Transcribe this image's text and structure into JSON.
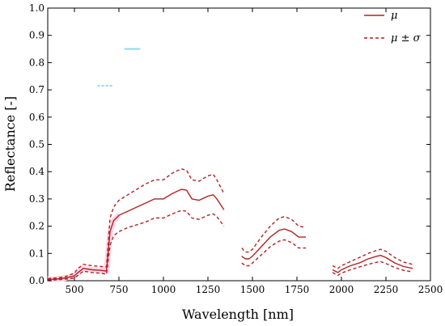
{
  "chart_data": {
    "type": "line",
    "xlabel": "Wavelength [nm]",
    "ylabel": "Reflectance [-]",
    "xlim": [
      350,
      2500
    ],
    "ylim": [
      0.0,
      1.0
    ],
    "xticks": [
      "500",
      "750",
      "1000",
      "1250",
      "1500",
      "1750",
      "2000",
      "2250",
      "2500"
    ],
    "xtick_values": [
      500,
      750,
      1000,
      1250,
      1500,
      1750,
      2000,
      2250,
      2500
    ],
    "yticks": [
      "0.0",
      "0.1",
      "0.2",
      "0.3",
      "0.4",
      "0.5",
      "0.6",
      "0.7",
      "0.8",
      "0.9",
      "1.0"
    ],
    "ytick_values": [
      0.0,
      0.1,
      0.2,
      0.3,
      0.4,
      0.5,
      0.6,
      0.7,
      0.8,
      0.9,
      1.0
    ],
    "legend_position": "top-right",
    "colors": {
      "series": "#b22222",
      "glow": "#ffd6e7",
      "artifact": "#8fd8f0"
    },
    "series": [
      {
        "name": "μ",
        "style": "solid",
        "segments": [
          {
            "x": [
              350,
              400,
              450,
              500,
              520,
              550,
              600,
              650,
              680,
              700,
              720,
              750,
              800,
              850,
              900,
              950,
              1000,
              1050,
              1100,
              1130,
              1160,
              1200,
              1250,
              1280,
              1300,
              1340
            ],
            "y": [
              0.005,
              0.006,
              0.01,
              0.018,
              0.03,
              0.045,
              0.04,
              0.038,
              0.035,
              0.18,
              0.22,
              0.24,
              0.255,
              0.27,
              0.285,
              0.3,
              0.3,
              0.32,
              0.335,
              0.332,
              0.3,
              0.295,
              0.31,
              0.315,
              0.3,
              0.26
            ]
          },
          {
            "x": [
              1440,
              1460,
              1480,
              1500,
              1550,
              1600,
              1650,
              1680,
              1720,
              1760,
              1800
            ],
            "y": [
              0.09,
              0.08,
              0.08,
              0.09,
              0.125,
              0.16,
              0.185,
              0.19,
              0.18,
              0.16,
              0.16
            ]
          },
          {
            "x": [
              1950,
              1980,
              2000,
              2050,
              2100,
              2150,
              2200,
              2220,
              2250,
              2300,
              2350,
              2400
            ],
            "y": [
              0.04,
              0.03,
              0.04,
              0.055,
              0.065,
              0.08,
              0.09,
              0.093,
              0.085,
              0.065,
              0.052,
              0.045
            ]
          }
        ]
      },
      {
        "name": "μ ± σ",
        "style": "dashed",
        "segments": [
          {
            "x": [
              350,
              400,
              450,
              500,
              520,
              550,
              600,
              650,
              680,
              700,
              720,
              750,
              800,
              850,
              900,
              950,
              1000,
              1050,
              1100,
              1130,
              1160,
              1200,
              1250,
              1280,
              1300,
              1340
            ],
            "y": [
              0.008,
              0.01,
              0.015,
              0.028,
              0.045,
              0.06,
              0.055,
              0.052,
              0.05,
              0.23,
              0.27,
              0.295,
              0.315,
              0.335,
              0.355,
              0.37,
              0.37,
              0.395,
              0.41,
              0.405,
              0.37,
              0.365,
              0.385,
              0.39,
              0.37,
              0.32
            ]
          },
          {
            "x": [
              350,
              400,
              450,
              500,
              520,
              550,
              600,
              650,
              680,
              700,
              720,
              750,
              800,
              850,
              900,
              950,
              1000,
              1050,
              1100,
              1130,
              1160,
              1200,
              1250,
              1280,
              1300,
              1340
            ],
            "y": [
              0.002,
              0.003,
              0.006,
              0.01,
              0.02,
              0.035,
              0.03,
              0.027,
              0.024,
              0.13,
              0.165,
              0.18,
              0.195,
              0.205,
              0.215,
              0.23,
              0.23,
              0.245,
              0.258,
              0.255,
              0.23,
              0.225,
              0.24,
              0.245,
              0.235,
              0.2
            ]
          },
          {
            "x": [
              1440,
              1460,
              1480,
              1500,
              1550,
              1600,
              1650,
              1680,
              1720,
              1760,
              1800
            ],
            "y": [
              0.12,
              0.105,
              0.105,
              0.115,
              0.16,
              0.2,
              0.23,
              0.235,
              0.225,
              0.2,
              0.195
            ]
          },
          {
            "x": [
              1440,
              1460,
              1480,
              1500,
              1550,
              1600,
              1650,
              1680,
              1720,
              1760,
              1800
            ],
            "y": [
              0.065,
              0.055,
              0.055,
              0.065,
              0.095,
              0.125,
              0.145,
              0.15,
              0.14,
              0.12,
              0.12
            ]
          },
          {
            "x": [
              1950,
              1980,
              2000,
              2050,
              2100,
              2150,
              2200,
              2220,
              2250,
              2300,
              2350,
              2400
            ],
            "y": [
              0.055,
              0.045,
              0.055,
              0.07,
              0.085,
              0.1,
              0.112,
              0.115,
              0.108,
              0.085,
              0.068,
              0.06
            ]
          },
          {
            "x": [
              1950,
              1980,
              2000,
              2050,
              2100,
              2150,
              2200,
              2220,
              2250,
              2300,
              2350,
              2400
            ],
            "y": [
              0.03,
              0.02,
              0.028,
              0.04,
              0.05,
              0.06,
              0.068,
              0.07,
              0.063,
              0.048,
              0.038,
              0.032
            ]
          }
        ]
      }
    ],
    "annotations": [
      {
        "type": "highlight",
        "x": [
          780,
          870
        ],
        "y": 0.85,
        "color": "#8fd8f0"
      },
      {
        "type": "highlight",
        "x": [
          630,
          720
        ],
        "y": 0.715,
        "color": "#8fd8f0"
      }
    ]
  }
}
